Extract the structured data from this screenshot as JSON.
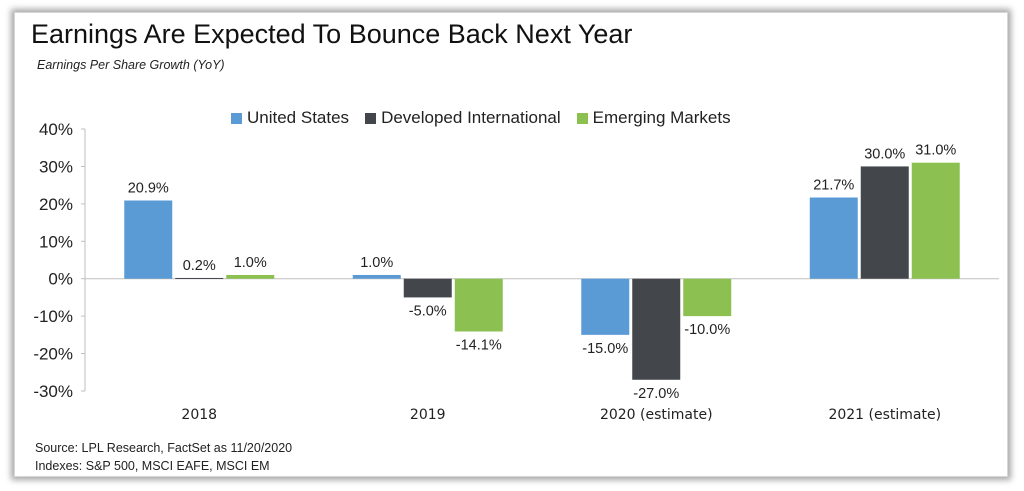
{
  "title": "Earnings Are Expected To Bounce Back Next Year",
  "subtitle": "Earnings Per Share Growth (YoY)",
  "source_line1": "Source: LPL Research, FactSet as 11/20/2020",
  "source_line2": "Indexes: S&P 500, MSCI EAFE, MSCI EM",
  "legend": [
    {
      "name": "United States",
      "color": "#5b9bd5"
    },
    {
      "name": "Developed International",
      "color": "#43464b"
    },
    {
      "name": "Emerging Markets",
      "color": "#8cc152"
    }
  ],
  "chart_data": {
    "type": "bar",
    "title": "Earnings Are Expected To Bounce Back Next Year",
    "subtitle": "Earnings Per Share Growth (YoY)",
    "xlabel": "",
    "ylabel": "",
    "categories": [
      "2018",
      "2019",
      "2020 (estimate)",
      "2021 (estimate)"
    ],
    "series": [
      {
        "name": "United States",
        "color": "#5b9bd5",
        "values": [
          20.9,
          1.0,
          -15.0,
          21.7
        ],
        "labels": [
          "20.9%",
          "1.0%",
          "-15.0%",
          "21.7%"
        ]
      },
      {
        "name": "Developed International",
        "color": "#43464b",
        "values": [
          0.2,
          -5.0,
          -27.0,
          30.0
        ],
        "labels": [
          "0.2%",
          "-5.0%",
          "-27.0%",
          "30.0%"
        ]
      },
      {
        "name": "Emerging Markets",
        "color": "#8cc152",
        "values": [
          1.0,
          -14.1,
          -10.0,
          31.0
        ],
        "labels": [
          "1.0%",
          "-14.1%",
          "-10.0%",
          "31.0%"
        ]
      }
    ],
    "ylim": [
      -30,
      40
    ],
    "yticks": [
      "40%",
      "30%",
      "20%",
      "10%",
      "0%",
      "-10%",
      "-20%",
      "-30%"
    ],
    "ytick_values": [
      40,
      30,
      20,
      10,
      0,
      -10,
      -20,
      -30
    ],
    "grid": false,
    "legend_position": "top-center"
  }
}
